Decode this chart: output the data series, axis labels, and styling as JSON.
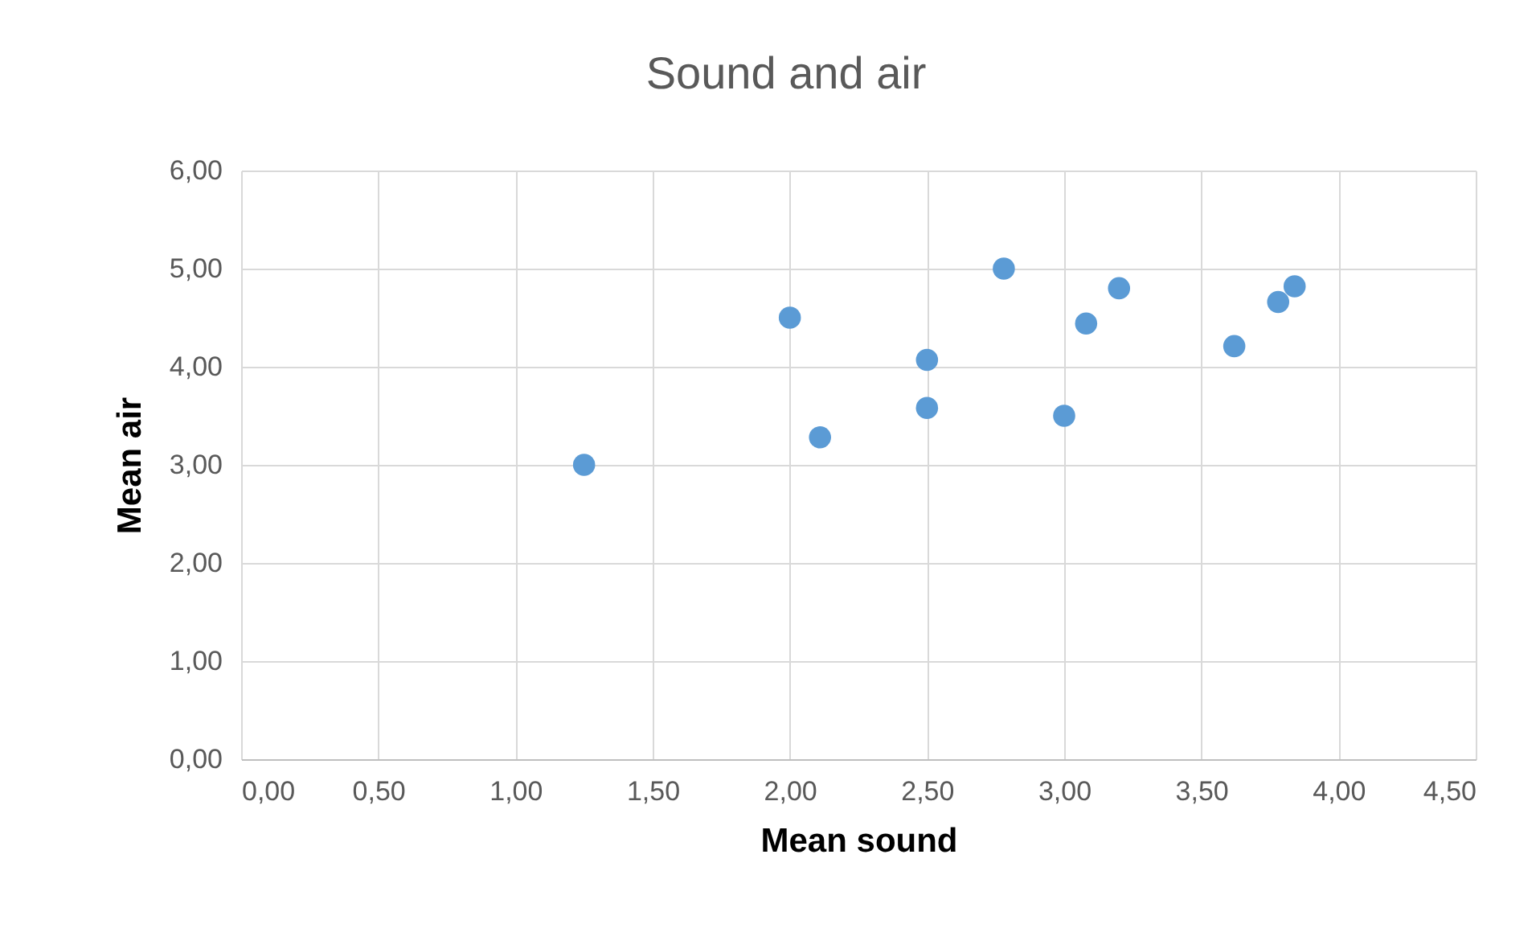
{
  "chart_data": {
    "type": "scatter",
    "title": "Sound and air",
    "xlabel": "Mean sound",
    "ylabel": "Mean air",
    "x": [
      1.25,
      2.0,
      2.11,
      2.5,
      2.5,
      2.78,
      3.0,
      3.08,
      3.2,
      3.62,
      3.78,
      3.84
    ],
    "series": [
      {
        "color": "#5b9bd5",
        "values": [
          3.0,
          4.5,
          3.28,
          4.07,
          3.58,
          5.0,
          3.5,
          4.44,
          4.8,
          4.21,
          4.66,
          4.82
        ]
      }
    ],
    "xlim": [
      0,
      4.5
    ],
    "ylim": [
      0,
      6
    ],
    "xticks": [
      {
        "value": 0,
        "label": "0,00"
      },
      {
        "value": 0.5,
        "label": "0,50"
      },
      {
        "value": 1,
        "label": "1,00"
      },
      {
        "value": 1.5,
        "label": "1,50"
      },
      {
        "value": 2,
        "label": "2,00"
      },
      {
        "value": 2.5,
        "label": "2,50"
      },
      {
        "value": 3,
        "label": "3,00"
      },
      {
        "value": 3.5,
        "label": "3,50"
      },
      {
        "value": 4,
        "label": "4,00"
      },
      {
        "value": 4.5,
        "label": "4,50"
      }
    ],
    "yticks": [
      {
        "value": 0,
        "label": "0,00"
      },
      {
        "value": 1,
        "label": "1,00"
      },
      {
        "value": 2,
        "label": "2,00"
      },
      {
        "value": 3,
        "label": "3,00"
      },
      {
        "value": 4,
        "label": "4,00"
      },
      {
        "value": 5,
        "label": "5,00"
      },
      {
        "value": 6,
        "label": "6,00"
      }
    ],
    "grid": true,
    "marker": "circle"
  }
}
